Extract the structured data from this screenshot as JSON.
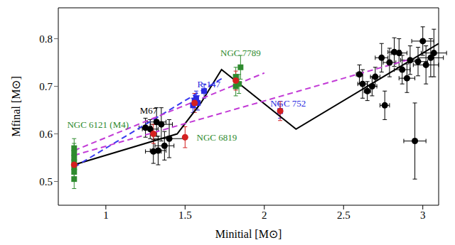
{
  "chart_data": {
    "type": "scatter",
    "x_label": "Minitial [M⊙]",
    "y_label": "Mfinal [M⊙]",
    "xlim": [
      0.7,
      3.1
    ],
    "ylim": [
      0.45,
      0.865
    ],
    "xticks": [
      1,
      1.5,
      2,
      2.5,
      3
    ],
    "yticks": [
      0.5,
      0.6,
      0.7,
      0.8
    ],
    "grid": false,
    "series": [
      {
        "type": "line",
        "color": "#000000",
        "line_style": "solid",
        "x": [
          0.8,
          1.45,
          1.6,
          1.73,
          2.2,
          3.1
        ],
        "y": [
          0.535,
          0.6,
          0.665,
          0.735,
          0.61,
          0.79
        ]
      },
      {
        "type": "line",
        "color": "#3a3af0",
        "line_style": "dashed",
        "x": [
          0.8,
          1.75
        ],
        "y": [
          0.53,
          0.72
        ]
      },
      {
        "type": "line",
        "color": "#c23ad6",
        "line_style": "dashed",
        "x": [
          0.8,
          2.0
        ],
        "y": [
          0.565,
          0.728
        ]
      },
      {
        "type": "line",
        "color": "#c23ad6",
        "line_style": "dashed",
        "x": [
          0.8,
          2.9
        ],
        "y": [
          0.555,
          0.755
        ]
      },
      {
        "type": "scatter",
        "color": "#000000",
        "marker": "circle",
        "x": [
          1.25,
          1.28,
          1.3,
          1.32,
          1.33,
          1.35,
          1.37,
          1.4,
          2.6,
          2.62,
          2.65,
          2.68,
          2.7,
          2.74,
          2.76,
          2.79,
          2.82,
          2.85,
          2.87,
          2.9,
          2.92,
          2.95,
          2.97,
          3.0,
          3.02,
          3.05,
          3.07
        ],
        "y": [
          0.613,
          0.61,
          0.563,
          0.625,
          0.565,
          0.62,
          0.575,
          0.59,
          0.725,
          0.705,
          0.69,
          0.7,
          0.72,
          0.76,
          0.66,
          0.75,
          0.772,
          0.77,
          0.735,
          0.717,
          0.755,
          0.585,
          0.752,
          0.795,
          0.745,
          0.76,
          0.77
        ],
        "x_err": [
          0.04,
          0.05,
          0.05,
          0.06,
          0.05,
          0.07,
          0.06,
          0.1,
          0.02,
          0.03,
          0.02,
          0.03,
          0.03,
          0.04,
          0.03,
          0.04,
          0.04,
          0.05,
          0.05,
          0.05,
          0.06,
          0.07,
          0.06,
          0.07,
          0.08,
          0.08,
          0.08
        ],
        "y_err": [
          0.02,
          0.02,
          0.025,
          0.03,
          0.03,
          0.035,
          0.03,
          0.04,
          0.02,
          0.03,
          0.02,
          0.02,
          0.02,
          0.03,
          0.03,
          0.03,
          0.03,
          0.03,
          0.03,
          0.03,
          0.03,
          0.08,
          0.03,
          0.03,
          0.04,
          0.04,
          0.05
        ]
      },
      {
        "type": "scatter",
        "color": "#2e8b2e",
        "marker": "square",
        "x": [
          0.8,
          0.8,
          0.8,
          0.8,
          0.8,
          0.8,
          0.8,
          1.82,
          1.84,
          1.85,
          1.82
        ],
        "y": [
          0.505,
          0.52,
          0.53,
          0.54,
          0.55,
          0.56,
          0.57,
          0.7,
          0.705,
          0.74,
          0.72
        ],
        "y_err": [
          0.02,
          0.02,
          0.015,
          0.015,
          0.02,
          0.02,
          0.02,
          0.02,
          0.02,
          0.025,
          0.02
        ]
      },
      {
        "type": "scatter",
        "color": "#2a2ae0",
        "marker": "square",
        "x": [
          1.55,
          1.56,
          1.57,
          1.58,
          1.62,
          2.1
        ],
        "y": [
          0.66,
          0.67,
          0.675,
          0.665,
          0.69,
          0.648
        ],
        "y_err": [
          0.015,
          0.015,
          0.015,
          0.015,
          0.015,
          0.015
        ]
      },
      {
        "type": "scatter",
        "color": "#d42020",
        "marker": "circle",
        "x": [
          0.8,
          1.3,
          1.5,
          1.56,
          1.82,
          2.1
        ],
        "y": [
          0.535,
          0.6,
          0.593,
          0.665,
          0.712,
          0.648
        ],
        "y_err": [
          0.015,
          0.02,
          0.022,
          0.02,
          0.02,
          0.02
        ]
      }
    ],
    "annotations": [
      {
        "text": "NGC 6121 (M4)",
        "x": 0.95,
        "y": 0.62,
        "color": "#2e8b2e"
      },
      {
        "text": "M67",
        "x": 1.27,
        "y": 0.65,
        "color": "#000000"
      },
      {
        "text": "R-147",
        "x": 1.65,
        "y": 0.705,
        "color": "#2a2ae0"
      },
      {
        "text": "NGC 7789",
        "x": 1.85,
        "y": 0.77,
        "color": "#2e8b2e"
      },
      {
        "text": "NGC 6819",
        "x": 1.7,
        "y": 0.593,
        "color": "#2e8b2e"
      },
      {
        "text": "NGC 752",
        "x": 2.15,
        "y": 0.665,
        "color": "#2a2ae0"
      }
    ]
  }
}
